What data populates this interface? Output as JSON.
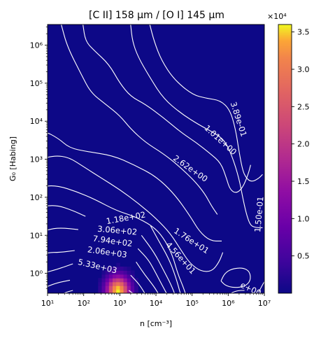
{
  "chart_data": {
    "type": "heatmap",
    "title": "[C II] 158 μm / [O I] 145 μm",
    "xlabel": "n [cm⁻³]",
    "ylabel": "G₀ [Habing]",
    "x_scale": "log",
    "y_scale": "log",
    "xlim": [
      10,
      10000000
    ],
    "ylim": [
      0.3,
      3500000
    ],
    "x_ticks": [
      {
        "value": 10,
        "label": "10¹"
      },
      {
        "value": 100,
        "label": "10²"
      },
      {
        "value": 1000,
        "label": "10³"
      },
      {
        "value": 10000,
        "label": "10⁴"
      },
      {
        "value": 100000,
        "label": "10⁵"
      },
      {
        "value": 1000000,
        "label": "10⁶"
      },
      {
        "value": 10000000,
        "label": "10⁷"
      }
    ],
    "y_ticks": [
      {
        "value": 1,
        "label": "10⁰"
      },
      {
        "value": 10,
        "label": "10¹"
      },
      {
        "value": 100,
        "label": "10²"
      },
      {
        "value": 1000,
        "label": "10³"
      },
      {
        "value": 10000,
        "label": "10⁴"
      },
      {
        "value": 100000,
        "label": "10⁵"
      },
      {
        "value": 1000000,
        "label": "10⁶"
      }
    ],
    "colormap": "plasma",
    "colorbar": {
      "min": 0,
      "max": 36000,
      "ticks": [
        {
          "value": 5000,
          "label": "0.5"
        },
        {
          "value": 10000,
          "label": "1.0"
        },
        {
          "value": 15000,
          "label": "1.5"
        },
        {
          "value": 20000,
          "label": "2.0"
        },
        {
          "value": 25000,
          "label": "2.5"
        },
        {
          "value": 30000,
          "label": "3.0"
        },
        {
          "value": 35000,
          "label": "3.5"
        }
      ],
      "multiplier_label": "×10⁴"
    },
    "peak": {
      "log_n": 2.95,
      "log_g0": -0.45,
      "value": 36000
    },
    "contour_labels": [
      {
        "text": "3.89e-01",
        "log_n": 6.28,
        "log_g0": 4.05,
        "angle": 72
      },
      {
        "text": "1.01e+00",
        "log_n": 5.78,
        "log_g0": 3.5,
        "angle": 42
      },
      {
        "text": "2.62e+00",
        "log_n": 4.95,
        "log_g0": 2.75,
        "angle": 35
      },
      {
        "text": "1.50e-01",
        "log_n": 6.86,
        "log_g0": 1.55,
        "angle": -85
      },
      {
        "text": "1.18e+02",
        "log_n": 3.17,
        "log_g0": 1.45,
        "angle": -10
      },
      {
        "text": "1.76e+01",
        "log_n": 4.98,
        "log_g0": 0.85,
        "angle": 33
      },
      {
        "text": "3.06e+02",
        "log_n": 2.93,
        "log_g0": 1.12,
        "angle": 5
      },
      {
        "text": "7.94e+02",
        "log_n": 2.8,
        "log_g0": 0.84,
        "angle": 8
      },
      {
        "text": "4.56e+01",
        "log_n": 4.68,
        "log_g0": 0.4,
        "angle": 48
      },
      {
        "text": "2.06e+03",
        "log_n": 2.65,
        "log_g0": 0.55,
        "angle": 8
      },
      {
        "text": "5.33e+03",
        "log_n": 2.38,
        "log_g0": 0.18,
        "angle": 13
      },
      {
        "text": "e+00",
        "log_n": 6.62,
        "log_g0": -0.42,
        "angle": 25
      }
    ],
    "contours": [
      [
        [
          3.3,
          6.54
        ],
        [
          3.35,
          6.1
        ],
        [
          3.5,
          5.7
        ],
        [
          3.8,
          5.2
        ],
        [
          4.2,
          4.6
        ],
        [
          4.7,
          4.2
        ],
        [
          5.2,
          3.9
        ],
        [
          5.6,
          3.7
        ],
        [
          5.9,
          3.5
        ],
        [
          6.1,
          3.1
        ],
        [
          6.3,
          2.5
        ],
        [
          6.42,
          1.9
        ],
        [
          6.52,
          1.5
        ],
        [
          6.62,
          1.25
        ],
        [
          6.78,
          1.2
        ],
        [
          6.95,
          1.2
        ]
      ],
      [
        [
          3.83,
          6.54
        ],
        [
          3.95,
          6.1
        ],
        [
          4.15,
          5.6
        ],
        [
          4.5,
          5.1
        ],
        [
          5.0,
          4.7
        ],
        [
          5.4,
          4.6
        ],
        [
          5.78,
          4.55
        ],
        [
          6.05,
          4.3
        ],
        [
          6.2,
          3.8
        ],
        [
          6.3,
          3.2
        ],
        [
          6.4,
          2.7
        ],
        [
          6.5,
          2.5
        ],
        [
          6.65,
          2.4
        ],
        [
          6.85,
          2.5
        ],
        [
          6.95,
          2.6
        ]
      ],
      [
        [
          1.98,
          6.54
        ],
        [
          2.05,
          6.1
        ],
        [
          2.3,
          5.85
        ],
        [
          2.7,
          5.5
        ],
        [
          3.0,
          5.0
        ],
        [
          3.3,
          4.65
        ],
        [
          3.7,
          4.45
        ],
        [
          4.2,
          4.1
        ],
        [
          4.7,
          3.7
        ],
        [
          5.1,
          3.45
        ],
        [
          5.5,
          3.15
        ],
        [
          5.8,
          2.9
        ],
        [
          5.95,
          2.5
        ],
        [
          6.05,
          2.2
        ],
        [
          6.22,
          2.1
        ],
        [
          6.4,
          2.25
        ],
        [
          6.55,
          2.6
        ],
        [
          6.62,
          2.85
        ]
      ],
      [
        [
          1.38,
          6.54
        ],
        [
          1.55,
          5.95
        ],
        [
          1.95,
          5.2
        ],
        [
          2.2,
          4.75
        ],
        [
          2.6,
          4.45
        ],
        [
          3.0,
          4.15
        ],
        [
          3.3,
          3.8
        ],
        [
          3.7,
          3.45
        ],
        [
          4.2,
          3.15
        ],
        [
          4.6,
          2.85
        ],
        [
          5.05,
          2.45
        ],
        [
          5.35,
          2.1
        ],
        [
          5.55,
          1.75
        ],
        [
          5.7,
          1.55
        ]
      ],
      [
        [
          0,
          3.45
        ],
        [
          0.4,
          3.65
        ],
        [
          0.9,
          3.75
        ],
        [
          1.3,
          3.55
        ],
        [
          1.6,
          3.3
        ],
        [
          2.1,
          3.2
        ],
        [
          2.8,
          3.1
        ],
        [
          3.4,
          2.85
        ],
        [
          4.0,
          2.55
        ],
        [
          4.5,
          2.1
        ],
        [
          4.95,
          1.5
        ],
        [
          5.2,
          1.1
        ],
        [
          5.5,
          0.85
        ],
        [
          5.82,
          0.85
        ]
      ],
      [
        [
          0,
          2.45
        ],
        [
          0.4,
          2.75
        ],
        [
          0.8,
          3.0
        ],
        [
          1.2,
          3.1
        ],
        [
          1.6,
          3.05
        ],
        [
          2.0,
          2.8
        ],
        [
          2.5,
          2.5
        ],
        [
          3.0,
          2.2
        ],
        [
          3.5,
          1.85
        ],
        [
          4.0,
          1.45
        ],
        [
          4.4,
          1.05
        ],
        [
          4.7,
          0.6
        ],
        [
          4.95,
          0.25
        ],
        [
          5.25,
          0.05
        ],
        [
          5.55,
          0.05
        ],
        [
          5.75,
          0.3
        ],
        [
          5.85,
          0.55
        ]
      ],
      [
        [
          0,
          1.9
        ],
        [
          0.5,
          2.1
        ],
        [
          0.9,
          2.3
        ],
        [
          1.3,
          2.3
        ],
        [
          1.8,
          2.15
        ],
        [
          2.3,
          1.95
        ],
        [
          2.9,
          1.65
        ],
        [
          3.4,
          1.5
        ],
        [
          3.9,
          1.25
        ],
        [
          4.2,
          0.95
        ],
        [
          4.45,
          0.5
        ],
        [
          4.6,
          0.0
        ],
        [
          4.75,
          -0.35
        ],
        [
          4.85,
          -0.62
        ]
      ],
      [
        [
          0,
          1.3
        ],
        [
          0.4,
          1.55
        ],
        [
          0.8,
          1.75
        ],
        [
          1.25,
          1.8
        ],
        [
          1.7,
          1.65
        ],
        [
          2.05,
          1.5
        ]
      ],
      [
        [
          3.85,
          1.25
        ],
        [
          4.05,
          0.9
        ],
        [
          4.35,
          0.4
        ],
        [
          4.55,
          -0.1
        ],
        [
          4.68,
          -0.55
        ],
        [
          4.73,
          -0.62
        ]
      ],
      [
        [
          0,
          0.75
        ],
        [
          0.6,
          1.0
        ],
        [
          1.0,
          1.15
        ],
        [
          1.35,
          1.2
        ],
        [
          1.85,
          1.15
        ]
      ],
      [
        [
          3.6,
          1.0
        ],
        [
          3.95,
          0.55
        ],
        [
          4.2,
          0.1
        ],
        [
          4.42,
          -0.3
        ],
        [
          4.55,
          -0.62
        ]
      ],
      [
        [
          0,
          0.1
        ],
        [
          0.5,
          0.4
        ],
        [
          1.0,
          0.55
        ],
        [
          1.35,
          0.55
        ],
        [
          1.75,
          0.6
        ]
      ],
      [
        [
          3.5,
          0.65
        ],
        [
          3.8,
          0.35
        ],
        [
          4.0,
          0.0
        ],
        [
          4.22,
          -0.4
        ],
        [
          4.35,
          -0.62
        ]
      ],
      [
        [
          0.05,
          -0.62
        ],
        [
          0.4,
          -0.25
        ],
        [
          0.85,
          0.0
        ],
        [
          1.25,
          0.1
        ],
        [
          1.7,
          0.25
        ]
      ],
      [
        [
          3.45,
          0.3
        ],
        [
          3.7,
          -0.05
        ],
        [
          3.95,
          -0.35
        ],
        [
          4.12,
          -0.62
        ]
      ],
      [
        [
          0.45,
          -0.62
        ],
        [
          0.85,
          -0.4
        ],
        [
          1.25,
          -0.25
        ],
        [
          1.62,
          -0.18
        ]
      ],
      [
        [
          3.3,
          -0.05
        ],
        [
          3.55,
          -0.3
        ],
        [
          3.75,
          -0.62
        ]
      ],
      [
        [
          5.8,
          -0.2
        ],
        [
          5.9,
          0.0
        ],
        [
          6.1,
          0.12
        ],
        [
          6.4,
          0.15
        ],
        [
          6.6,
          0.05
        ],
        [
          6.62,
          -0.2
        ],
        [
          6.45,
          -0.35
        ],
        [
          6.15,
          -0.38
        ],
        [
          5.92,
          -0.32
        ],
        [
          5.8,
          -0.2
        ]
      ],
      [
        [
          5.95,
          -0.62
        ],
        [
          6.1,
          -0.5
        ],
        [
          6.3,
          -0.45
        ],
        [
          6.45,
          -0.45
        ]
      ],
      [
        [
          6.84,
          -0.5
        ],
        [
          6.92,
          -0.35
        ],
        [
          7.0,
          -0.22
        ]
      ],
      [
        [
          1.25,
          -0.62
        ],
        [
          1.5,
          -0.5
        ],
        [
          1.7,
          -0.45
        ]
      ],
      [
        [
          3.25,
          -0.45
        ],
        [
          3.4,
          -0.55
        ],
        [
          3.5,
          -0.62
        ]
      ]
    ]
  }
}
